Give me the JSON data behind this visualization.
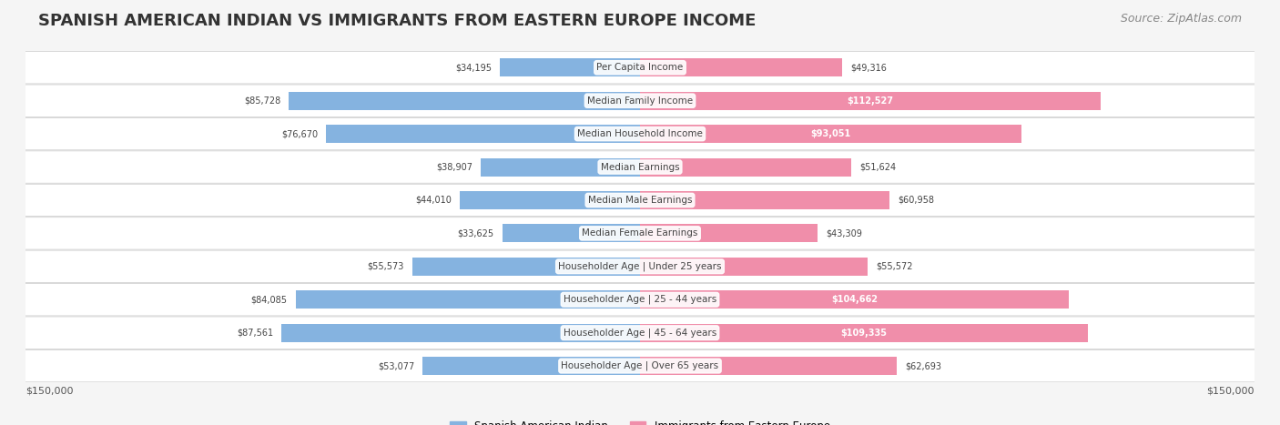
{
  "title": "SPANISH AMERICAN INDIAN VS IMMIGRANTS FROM EASTERN EUROPE INCOME",
  "source": "Source: ZipAtlas.com",
  "categories": [
    "Per Capita Income",
    "Median Family Income",
    "Median Household Income",
    "Median Earnings",
    "Median Male Earnings",
    "Median Female Earnings",
    "Householder Age | Under 25 years",
    "Householder Age | 25 - 44 years",
    "Householder Age | 45 - 64 years",
    "Householder Age | Over 65 years"
  ],
  "left_values": [
    34195,
    85728,
    76670,
    38907,
    44010,
    33625,
    55573,
    84085,
    87561,
    53077
  ],
  "right_values": [
    49316,
    112527,
    93051,
    51624,
    60958,
    43309,
    55572,
    104662,
    109335,
    62693
  ],
  "left_labels": [
    "$34,195",
    "$85,728",
    "$76,670",
    "$38,907",
    "$44,010",
    "$33,625",
    "$55,573",
    "$84,085",
    "$87,561",
    "$53,077"
  ],
  "right_labels": [
    "$49,316",
    "$112,527",
    "$93,051",
    "$51,624",
    "$60,958",
    "$43,309",
    "$55,572",
    "$104,662",
    "$109,335",
    "$62,693"
  ],
  "left_color": "#85b3e0",
  "right_color": "#f08eaa",
  "left_color_dark": "#5a8fc7",
  "right_color_dark": "#e8698a",
  "max_value": 150000,
  "x_label_left": "$150,000",
  "x_label_right": "$150,000",
  "legend_left": "Spanish American Indian",
  "legend_right": "Immigrants from Eastern Europe",
  "title_fontsize": 13,
  "source_fontsize": 9,
  "bar_height": 0.55,
  "background_color": "#f5f5f5",
  "bar_bg_color": "#ffffff",
  "large_value_threshold": 90000
}
